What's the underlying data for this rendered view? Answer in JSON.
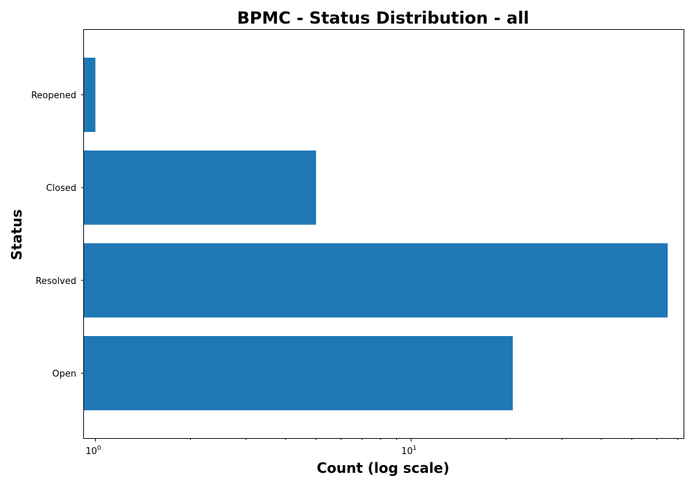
{
  "chart_data": {
    "type": "bar",
    "orientation": "horizontal",
    "title": "BPMC - Status Distribution - all",
    "xlabel": "Count (log scale)",
    "ylabel": "Status",
    "x_scale": "log",
    "xlim": [
      0.92,
      73
    ],
    "x_major_ticks": [
      {
        "base": "10",
        "exp": "0",
        "value": 1
      },
      {
        "base": "10",
        "exp": "1",
        "value": 10
      }
    ],
    "categories": [
      "Open",
      "Resolved",
      "Closed",
      "Reopened"
    ],
    "values": [
      21,
      65,
      5,
      1
    ],
    "bar_color": "#1f77b4",
    "grid": false,
    "legend": "none"
  }
}
